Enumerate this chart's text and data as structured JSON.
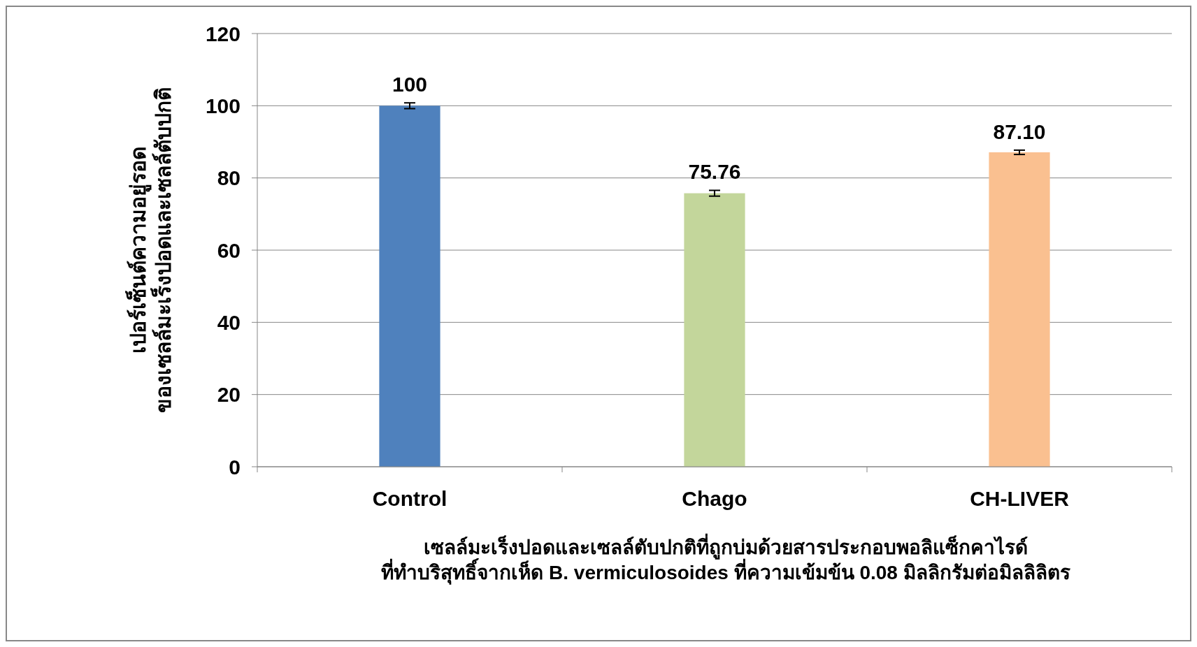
{
  "chart_data": {
    "type": "bar",
    "categories": [
      "Control",
      "Chago",
      "CH-LIVER"
    ],
    "values": [
      100,
      75.76,
      87.1
    ],
    "value_labels": [
      "100",
      "75.76",
      "87.10"
    ],
    "colors": [
      "#4f81bd",
      "#c3d69b",
      "#fac090"
    ],
    "errors": [
      0.8,
      0.8,
      0.6
    ],
    "ylim": [
      0,
      120
    ],
    "yticks": [
      0,
      20,
      40,
      60,
      80,
      100,
      120
    ],
    "grid": "y",
    "ylabel": "เปอร์เซ็นต์ความอยู่รอด\nของเซลล์มะเร็งปอดและเซลล์ตับปกติ",
    "xlabel": "เซลล์มะเร็งปอดและเซลล์ตับปกติที่ถูกบ่มด้วยสารประกอบพอลิแซ็กคาไรด์\nที่ทำบริสุทธิ์จากเห็ด B. vermiculosoides ที่ความเข้มข้น 0.08 มิลลิกรัมต่อมิลลิลิตร"
  }
}
